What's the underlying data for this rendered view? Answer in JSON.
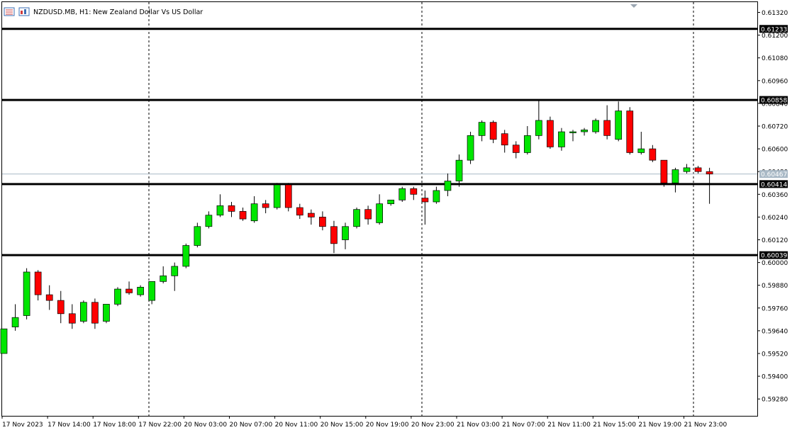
{
  "header": {
    "symbol_label": "NZDUSD.MB, H1:",
    "description": "New Zealand Dollar Vs US Dollar"
  },
  "colors": {
    "bull_fill": "#00e600",
    "bear_fill": "#ff0000",
    "wick": "#000000",
    "level_line": "#000000",
    "bid_line": "#a9b9c6",
    "grid_separator": "#000000",
    "tag_bg": "#000000",
    "tag_text": "#ffffff"
  },
  "icons": [
    "chart-list-icon",
    "chart-window-icon"
  ],
  "chart_data": {
    "type": "candlestick",
    "symbol": "NZDUSD.MB",
    "timeframe": "H1",
    "title": "New Zealand Dollar Vs US Dollar",
    "ylim": [
      0.592,
      0.6135
    ],
    "y_ticks": [
      "0.61320",
      "0.61200",
      "0.61080",
      "0.60960",
      "0.60840",
      "0.60720",
      "0.60600",
      "0.60480",
      "0.60360",
      "0.60240",
      "0.60120",
      "0.60000",
      "0.59880",
      "0.59760",
      "0.59640",
      "0.59520",
      "0.59400",
      "0.59280"
    ],
    "x_ticks": [
      "17 Nov 2023",
      "17 Nov 14:00",
      "17 Nov 18:00",
      "17 Nov 22:00",
      "20 Nov 03:00",
      "20 Nov 07:00",
      "20 Nov 11:00",
      "20 Nov 15:00",
      "20 Nov 19:00",
      "20 Nov 23:00",
      "21 Nov 03:00",
      "21 Nov 07:00",
      "21 Nov 11:00",
      "21 Nov 15:00",
      "21 Nov 19:00",
      "21 Nov 23:00"
    ],
    "separator_tick_indices": [
      3,
      9,
      15
    ],
    "levels": [
      {
        "label": "0.61233",
        "value": 0.61233
      },
      {
        "label": "0.60858",
        "value": 0.60858
      },
      {
        "label": "0.60414",
        "value": 0.60414
      },
      {
        "label": "0.60039",
        "value": 0.60039
      }
    ],
    "bid": {
      "label": "0.60467",
      "value": 0.60467
    },
    "candles": [
      {
        "o": 0.5952,
        "h": 0.5965,
        "l": 0.5952,
        "c": 0.5965
      },
      {
        "o": 0.5966,
        "h": 0.5978,
        "l": 0.5964,
        "c": 0.5971
      },
      {
        "o": 0.5972,
        "h": 0.5997,
        "l": 0.597,
        "c": 0.5995
      },
      {
        "o": 0.5995,
        "h": 0.5996,
        "l": 0.598,
        "c": 0.5983
      },
      {
        "o": 0.5983,
        "h": 0.5988,
        "l": 0.5975,
        "c": 0.598
      },
      {
        "o": 0.598,
        "h": 0.5985,
        "l": 0.5968,
        "c": 0.5973
      },
      {
        "o": 0.5973,
        "h": 0.5978,
        "l": 0.5965,
        "c": 0.5968
      },
      {
        "o": 0.5969,
        "h": 0.598,
        "l": 0.5968,
        "c": 0.5979
      },
      {
        "o": 0.5979,
        "h": 0.5981,
        "l": 0.5965,
        "c": 0.5968
      },
      {
        "o": 0.5969,
        "h": 0.5978,
        "l": 0.5968,
        "c": 0.5978
      },
      {
        "o": 0.5978,
        "h": 0.5987,
        "l": 0.5977,
        "c": 0.5986
      },
      {
        "o": 0.5986,
        "h": 0.599,
        "l": 0.5983,
        "c": 0.5984
      },
      {
        "o": 0.5983,
        "h": 0.5988,
        "l": 0.5982,
        "c": 0.5987
      },
      {
        "o": 0.598,
        "h": 0.599,
        "l": 0.5978,
        "c": 0.599
      },
      {
        "o": 0.599,
        "h": 0.5998,
        "l": 0.5989,
        "c": 0.5993
      },
      {
        "o": 0.5993,
        "h": 0.6,
        "l": 0.5985,
        "c": 0.5998
      },
      {
        "o": 0.5998,
        "h": 0.601,
        "l": 0.5997,
        "c": 0.6009
      },
      {
        "o": 0.6009,
        "h": 0.6021,
        "l": 0.6008,
        "c": 0.6019
      },
      {
        "o": 0.6019,
        "h": 0.6027,
        "l": 0.6018,
        "c": 0.6025
      },
      {
        "o": 0.6025,
        "h": 0.6036,
        "l": 0.6024,
        "c": 0.603
      },
      {
        "o": 0.603,
        "h": 0.6032,
        "l": 0.6024,
        "c": 0.6027
      },
      {
        "o": 0.6027,
        "h": 0.6029,
        "l": 0.6022,
        "c": 0.6023
      },
      {
        "o": 0.6022,
        "h": 0.6035,
        "l": 0.6021,
        "c": 0.6031
      },
      {
        "o": 0.6031,
        "h": 0.6033,
        "l": 0.6026,
        "c": 0.6029
      },
      {
        "o": 0.6029,
        "h": 0.6042,
        "l": 0.6028,
        "c": 0.6041
      },
      {
        "o": 0.6041,
        "h": 0.6042,
        "l": 0.6027,
        "c": 0.6029
      },
      {
        "o": 0.6029,
        "h": 0.6031,
        "l": 0.6023,
        "c": 0.6025
      },
      {
        "o": 0.6026,
        "h": 0.6028,
        "l": 0.602,
        "c": 0.6024
      },
      {
        "o": 0.6024,
        "h": 0.6027,
        "l": 0.6017,
        "c": 0.6019
      },
      {
        "o": 0.6019,
        "h": 0.6022,
        "l": 0.6005,
        "c": 0.601
      },
      {
        "o": 0.6012,
        "h": 0.6021,
        "l": 0.6007,
        "c": 0.6019
      },
      {
        "o": 0.6019,
        "h": 0.6029,
        "l": 0.6018,
        "c": 0.6028
      },
      {
        "o": 0.6028,
        "h": 0.603,
        "l": 0.602,
        "c": 0.6023
      },
      {
        "o": 0.6021,
        "h": 0.6036,
        "l": 0.602,
        "c": 0.6031
      },
      {
        "o": 0.6031,
        "h": 0.6033,
        "l": 0.603,
        "c": 0.6033
      },
      {
        "o": 0.6033,
        "h": 0.604,
        "l": 0.6032,
        "c": 0.6039
      },
      {
        "o": 0.6039,
        "h": 0.604,
        "l": 0.6033,
        "c": 0.6036
      },
      {
        "o": 0.6034,
        "h": 0.6038,
        "l": 0.602,
        "c": 0.6032
      },
      {
        "o": 0.6032,
        "h": 0.604,
        "l": 0.6031,
        "c": 0.6038
      },
      {
        "o": 0.6038,
        "h": 0.6047,
        "l": 0.6035,
        "c": 0.6043
      },
      {
        "o": 0.6043,
        "h": 0.6057,
        "l": 0.604,
        "c": 0.6054
      },
      {
        "o": 0.6054,
        "h": 0.6069,
        "l": 0.6052,
        "c": 0.6067
      },
      {
        "o": 0.6067,
        "h": 0.6075,
        "l": 0.6064,
        "c": 0.6074
      },
      {
        "o": 0.6074,
        "h": 0.6075,
        "l": 0.6063,
        "c": 0.6065
      },
      {
        "o": 0.6068,
        "h": 0.607,
        "l": 0.6058,
        "c": 0.6062
      },
      {
        "o": 0.6062,
        "h": 0.6064,
        "l": 0.6055,
        "c": 0.6058
      },
      {
        "o": 0.6058,
        "h": 0.6072,
        "l": 0.6057,
        "c": 0.6067
      },
      {
        "o": 0.6067,
        "h": 0.6086,
        "l": 0.6065,
        "c": 0.6075
      },
      {
        "o": 0.6075,
        "h": 0.6077,
        "l": 0.606,
        "c": 0.6061
      },
      {
        "o": 0.6061,
        "h": 0.6071,
        "l": 0.6059,
        "c": 0.6069
      },
      {
        "o": 0.6069,
        "h": 0.607,
        "l": 0.6064,
        "c": 0.6069
      },
      {
        "o": 0.6069,
        "h": 0.6071,
        "l": 0.6067,
        "c": 0.607
      },
      {
        "o": 0.6069,
        "h": 0.6076,
        "l": 0.6068,
        "c": 0.6075
      },
      {
        "o": 0.6075,
        "h": 0.6083,
        "l": 0.6065,
        "c": 0.6067
      },
      {
        "o": 0.6065,
        "h": 0.6085,
        "l": 0.6064,
        "c": 0.608
      },
      {
        "o": 0.608,
        "h": 0.6082,
        "l": 0.6057,
        "c": 0.6058
      },
      {
        "o": 0.6058,
        "h": 0.6069,
        "l": 0.6057,
        "c": 0.606
      },
      {
        "o": 0.606,
        "h": 0.6062,
        "l": 0.6053,
        "c": 0.6054
      },
      {
        "o": 0.6054,
        "h": 0.6054,
        "l": 0.604,
        "c": 0.6042
      },
      {
        "o": 0.6042,
        "h": 0.605,
        "l": 0.6037,
        "c": 0.6049
      },
      {
        "o": 0.6048,
        "h": 0.6052,
        "l": 0.6047,
        "c": 0.605
      },
      {
        "o": 0.605,
        "h": 0.6051,
        "l": 0.6047,
        "c": 0.6048
      },
      {
        "o": 0.6048,
        "h": 0.605,
        "l": 0.6031,
        "c": 0.60467
      }
    ]
  }
}
